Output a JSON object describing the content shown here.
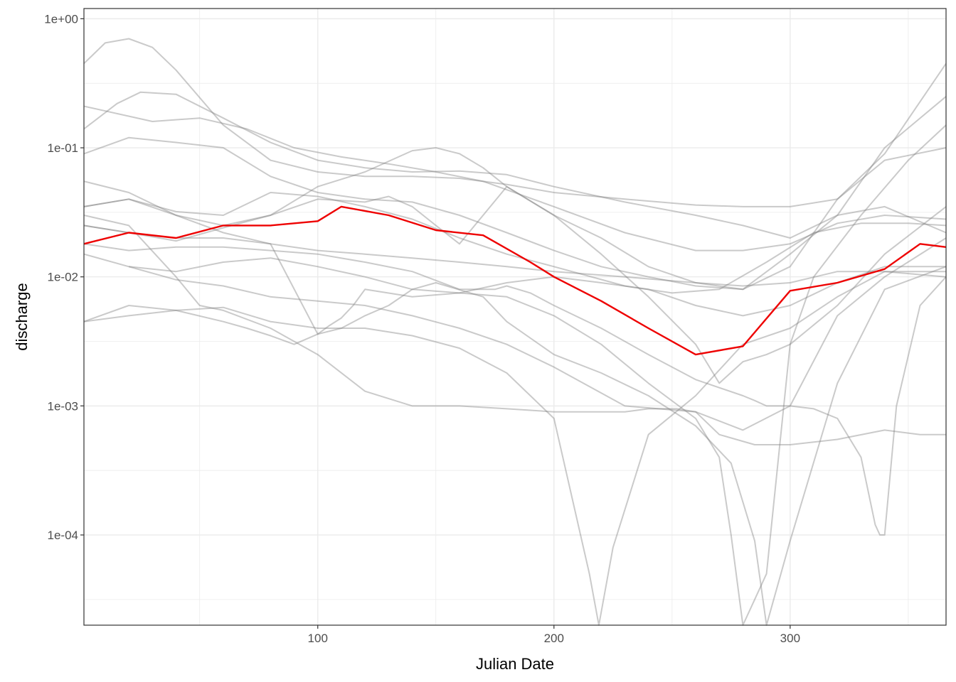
{
  "chart_data": {
    "type": "line",
    "xlabel": "Julian Date",
    "ylabel": "discharge",
    "xlim": [
      1,
      366
    ],
    "ylim": [
      2e-05,
      1.2
    ],
    "yscale": "log",
    "x_ticks": [
      100,
      200,
      300
    ],
    "x_tick_labels": [
      "100",
      "200",
      "300"
    ],
    "y_ticks": [
      0.0001,
      0.001,
      0.01,
      0.1,
      1
    ],
    "y_tick_labels": [
      "1e-04",
      "1e-03",
      "1e-02",
      "1e-01",
      "1e+00"
    ],
    "grid": true,
    "legend": "none",
    "colors": {
      "background_series": "#808080",
      "highlight_series": "#ee0000",
      "grid": "#ebebeb",
      "panel_border": "#333333"
    },
    "series": [
      {
        "x": [
          1,
          20,
          40,
          60,
          80,
          100,
          110,
          130,
          150,
          170,
          190,
          200,
          220,
          240,
          260,
          280,
          300,
          320,
          340,
          355,
          366
        ],
        "y": [
          0.018,
          0.022,
          0.02,
          0.025,
          0.025,
          0.027,
          0.035,
          0.03,
          0.023,
          0.021,
          0.013,
          0.01,
          0.0065,
          0.004,
          0.0025,
          0.0029,
          0.0078,
          0.009,
          0.0115,
          0.018,
          0.017
        ],
        "highlight": true
      },
      {
        "x": [
          1,
          10,
          20,
          30,
          40,
          60,
          80,
          100,
          120,
          140,
          160,
          180,
          200,
          230,
          260,
          280,
          300,
          320,
          340,
          366
        ],
        "y": [
          0.45,
          0.65,
          0.7,
          0.6,
          0.4,
          0.15,
          0.08,
          0.065,
          0.06,
          0.06,
          0.058,
          0.052,
          0.045,
          0.04,
          0.036,
          0.035,
          0.035,
          0.04,
          0.09,
          0.45
        ]
      },
      {
        "x": [
          1,
          15,
          25,
          40,
          60,
          80,
          100,
          120,
          140,
          160,
          180,
          200,
          230,
          260,
          280,
          300,
          320,
          340,
          366
        ],
        "y": [
          0.14,
          0.22,
          0.27,
          0.26,
          0.17,
          0.11,
          0.08,
          0.07,
          0.065,
          0.066,
          0.062,
          0.05,
          0.038,
          0.03,
          0.025,
          0.02,
          0.03,
          0.1,
          0.25
        ]
      },
      {
        "x": [
          1,
          30,
          50,
          70,
          90,
          110,
          130,
          150,
          170,
          200,
          230,
          260,
          280,
          300,
          320,
          340,
          366
        ],
        "y": [
          0.21,
          0.16,
          0.17,
          0.14,
          0.1,
          0.085,
          0.075,
          0.065,
          0.055,
          0.035,
          0.022,
          0.016,
          0.016,
          0.018,
          0.026,
          0.03,
          0.028
        ]
      },
      {
        "x": [
          1,
          20,
          40,
          60,
          80,
          100,
          120,
          140,
          160,
          180,
          200,
          220,
          240,
          260,
          280,
          300,
          320,
          340,
          366
        ],
        "y": [
          0.09,
          0.12,
          0.11,
          0.1,
          0.06,
          0.045,
          0.04,
          0.038,
          0.03,
          0.022,
          0.016,
          0.012,
          0.01,
          0.0085,
          0.008,
          0.015,
          0.03,
          0.035,
          0.022
        ]
      },
      {
        "x": [
          1,
          20,
          40,
          60,
          80,
          100,
          120,
          140,
          160,
          180,
          200,
          230,
          260,
          280,
          300,
          320,
          340,
          366
        ],
        "y": [
          0.055,
          0.045,
          0.03,
          0.022,
          0.018,
          0.016,
          0.015,
          0.014,
          0.013,
          0.012,
          0.011,
          0.01,
          0.009,
          0.0085,
          0.009,
          0.011,
          0.011,
          0.011
        ]
      },
      {
        "x": [
          1,
          20,
          40,
          60,
          80,
          100,
          120,
          140,
          160,
          180,
          200,
          230,
          250,
          270,
          290,
          310,
          330,
          350,
          366
        ],
        "y": [
          0.035,
          0.04,
          0.032,
          0.03,
          0.045,
          0.042,
          0.035,
          0.028,
          0.02,
          0.015,
          0.012,
          0.0085,
          0.0075,
          0.008,
          0.013,
          0.022,
          0.026,
          0.026,
          0.025
        ]
      },
      {
        "x": [
          1,
          20,
          40,
          60,
          80,
          100,
          120,
          140,
          160,
          180,
          200,
          230,
          260,
          280,
          300,
          320,
          340,
          366
        ],
        "y": [
          0.015,
          0.012,
          0.0095,
          0.0085,
          0.007,
          0.0065,
          0.006,
          0.005,
          0.004,
          0.003,
          0.002,
          0.001,
          0.0009,
          0.00065,
          0.001,
          0.005,
          0.01,
          0.02
        ]
      },
      {
        "x": [
          1,
          20,
          40,
          60,
          80,
          100,
          120,
          140,
          160,
          180,
          200,
          215,
          219,
          225,
          240,
          260,
          280,
          300,
          320,
          340,
          366
        ],
        "y": [
          0.0045,
          0.006,
          0.0055,
          0.0058,
          0.0045,
          0.004,
          0.004,
          0.0035,
          0.0028,
          0.0018,
          0.0008,
          5e-05,
          2e-05,
          8e-05,
          0.0006,
          0.0012,
          0.003,
          0.004,
          0.007,
          0.011,
          0.01
        ]
      },
      {
        "x": [
          1,
          20,
          40,
          50,
          60,
          80,
          100,
          120,
          140,
          160,
          180,
          200,
          220,
          230,
          240,
          252,
          260,
          270,
          285,
          300,
          320,
          340,
          355,
          366
        ],
        "y": [
          0.03,
          0.025,
          0.01,
          0.006,
          0.0055,
          0.004,
          0.0025,
          0.0013,
          0.001,
          0.001,
          0.00095,
          0.0009,
          0.0009,
          0.0009,
          0.00095,
          0.00095,
          0.0009,
          0.0006,
          0.0005,
          0.0005,
          0.00055,
          0.00065,
          0.0006,
          0.0006
        ]
      },
      {
        "x": [
          1,
          20,
          40,
          60,
          80,
          100,
          110,
          120,
          130,
          140,
          150,
          170,
          180,
          200,
          220,
          240,
          260,
          275,
          285,
          290,
          300,
          320,
          340,
          366
        ],
        "y": [
          0.025,
          0.022,
          0.02,
          0.02,
          0.018,
          0.0036,
          0.004,
          0.005,
          0.006,
          0.008,
          0.009,
          0.007,
          0.0045,
          0.0025,
          0.0018,
          0.0012,
          0.0007,
          0.00036,
          9e-05,
          2e-05,
          9e-05,
          0.0015,
          0.008,
          0.012
        ]
      },
      {
        "x": [
          1,
          20,
          40,
          60,
          70,
          80,
          90,
          100,
          105,
          110,
          115,
          120,
          140,
          160,
          180,
          200,
          220,
          240,
          260,
          280,
          300,
          320,
          340,
          366
        ],
        "y": [
          0.0045,
          0.005,
          0.0055,
          0.0045,
          0.004,
          0.0035,
          0.003,
          0.0036,
          0.0042,
          0.0048,
          0.006,
          0.008,
          0.007,
          0.0075,
          0.009,
          0.01,
          0.009,
          0.008,
          0.006,
          0.005,
          0.006,
          0.009,
          0.012,
          0.012
        ]
      },
      {
        "x": [
          1,
          20,
          40,
          60,
          80,
          100,
          120,
          140,
          160,
          175,
          180,
          190,
          200,
          220,
          240,
          260,
          280,
          285,
          290,
          300,
          310,
          320,
          330,
          336,
          338,
          340,
          345,
          355,
          366
        ],
        "y": [
          0.018,
          0.016,
          0.017,
          0.017,
          0.016,
          0.015,
          0.013,
          0.011,
          0.008,
          0.008,
          0.0085,
          0.0075,
          0.006,
          0.004,
          0.0025,
          0.0016,
          0.0012,
          0.0011,
          0.001,
          0.001,
          0.00095,
          0.0008,
          0.0004,
          0.00012,
          0.0001,
          0.0001,
          0.001,
          0.006,
          0.01
        ]
      },
      {
        "x": [
          20,
          40,
          60,
          80,
          100,
          120,
          140,
          160,
          180,
          200,
          220,
          240,
          260,
          270,
          275,
          280,
          290,
          300,
          310,
          330,
          350,
          366
        ],
        "y": [
          0.012,
          0.011,
          0.013,
          0.014,
          0.012,
          0.01,
          0.008,
          0.0075,
          0.007,
          0.005,
          0.003,
          0.0015,
          0.0008,
          0.0004,
          0.0001,
          2e-05,
          5e-05,
          0.003,
          0.01,
          0.03,
          0.08,
          0.15
        ]
      },
      {
        "x": [
          1,
          20,
          40,
          60,
          80,
          100,
          120,
          130,
          140,
          150,
          160,
          170,
          180,
          200,
          220,
          240,
          260,
          270,
          280,
          290,
          300,
          320,
          340,
          366
        ],
        "y": [
          0.035,
          0.04,
          0.03,
          0.025,
          0.03,
          0.04,
          0.038,
          0.042,
          0.035,
          0.025,
          0.018,
          0.03,
          0.05,
          0.03,
          0.015,
          0.007,
          0.003,
          0.0015,
          0.0022,
          0.0025,
          0.003,
          0.006,
          0.015,
          0.035
        ]
      },
      {
        "x": [
          1,
          20,
          40,
          60,
          80,
          100,
          120,
          140,
          150,
          160,
          170,
          180,
          200,
          220,
          240,
          260,
          280,
          300,
          320,
          340,
          366
        ],
        "y": [
          0.025,
          0.022,
          0.019,
          0.024,
          0.03,
          0.05,
          0.065,
          0.095,
          0.1,
          0.09,
          0.07,
          0.05,
          0.03,
          0.02,
          0.012,
          0.009,
          0.008,
          0.012,
          0.04,
          0.08,
          0.1
        ]
      }
    ]
  }
}
